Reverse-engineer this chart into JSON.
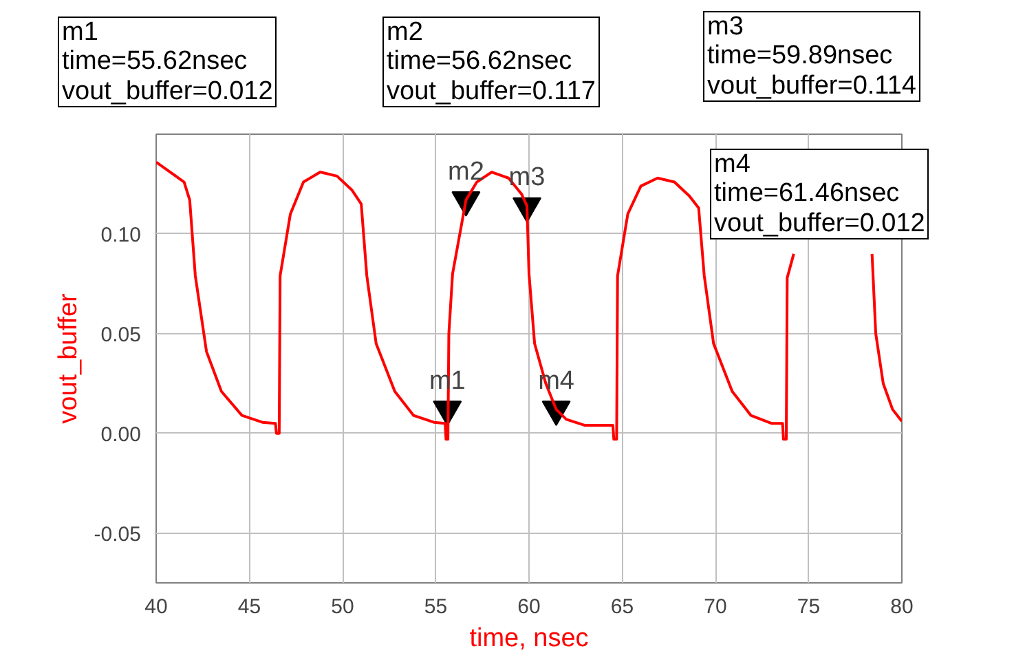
{
  "chart_data": {
    "type": "line",
    "xlabel": "time, nsec",
    "ylabel": "vout_buffer",
    "x": [
      40,
      41.5,
      41.8,
      42.1,
      42.7,
      43.5,
      44.6,
      45.7,
      46.4,
      46.45,
      46.6,
      46.65,
      47.2,
      47.9,
      48.8,
      49.7,
      50.5,
      51.0,
      51.3,
      51.8,
      52.8,
      53.8,
      54.9,
      55.5,
      55.55,
      55.65,
      55.7,
      55.9,
      56.62,
      57.2,
      58.0,
      58.9,
      59.6,
      59.89,
      60.0,
      60.3,
      60.9,
      61.46,
      62.0,
      63.0,
      64.0,
      64.5,
      64.55,
      64.7,
      64.75,
      65.3,
      66.0,
      66.9,
      67.8,
      68.6,
      69.1,
      69.4,
      69.9,
      70.9,
      71.9,
      73.0,
      73.6,
      73.65,
      73.8,
      73.85,
      74.2,
      74.5,
      78.3,
      78.4,
      78.6,
      79.0,
      79.5,
      80
    ],
    "series": [
      {
        "color": "#ff0000",
        "values": [
          0.136,
          0.126,
          0.117,
          0.079,
          0.041,
          0.021,
          0.009,
          0.0055,
          0.005,
          0.0,
          0.0,
          0.079,
          0.11,
          0.126,
          0.131,
          0.129,
          0.122,
          0.115,
          0.079,
          0.045,
          0.021,
          0.009,
          0.0055,
          0.005,
          -0.003,
          -0.003,
          0.05,
          0.08,
          0.117,
          0.126,
          0.131,
          0.128,
          0.12,
          0.114,
          0.08,
          0.045,
          0.025,
          0.012,
          0.007,
          0.004,
          0.004,
          0.004,
          -0.003,
          -0.003,
          0.079,
          0.11,
          0.124,
          0.128,
          0.126,
          0.119,
          0.113,
          0.079,
          0.045,
          0.021,
          0.009,
          0.005,
          0.005,
          -0.003,
          -0.003,
          0.078,
          0.09,
          null,
          null,
          0.09,
          0.05,
          0.025,
          0.012,
          0.006
        ]
      },
      {
        "type": "scatter",
        "marker": "triangle",
        "color": "#000000",
        "x": [
          55.62,
          56.62,
          59.89,
          61.46
        ],
        "values": [
          0.012,
          0.117,
          0.114,
          0.012
        ]
      }
    ],
    "xlim": [
      40,
      80
    ],
    "ylim": [
      -0.075,
      0.15
    ],
    "xticks": [
      40,
      45,
      50,
      55,
      60,
      65,
      70,
      75,
      80
    ],
    "yticks": [
      {
        "value": -0.05,
        "label": "-0.05"
      },
      {
        "value": 0.0,
        "label": "0.00"
      },
      {
        "value": 0.05,
        "label": "0.05"
      },
      {
        "value": 0.1,
        "label": "0.10"
      }
    ],
    "grid": true,
    "annotations": [
      {
        "text": "m1",
        "x": 55.62,
        "y": 0.012
      },
      {
        "text": "m2",
        "x": 56.62,
        "y": 0.117
      },
      {
        "text": "m3",
        "x": 59.89,
        "y": 0.114
      },
      {
        "text": "m4",
        "x": 61.46,
        "y": 0.012
      },
      "m1\ntime=55.62nsec\nvout_buffer=0.012",
      "m2\ntime=56.62nsec\nvout_buffer=0.117",
      "m3\ntime=59.89nsec\nvout_buffer=0.114",
      "m4\ntime=61.46nsec\nvout_buffer=0.012"
    ]
  }
}
